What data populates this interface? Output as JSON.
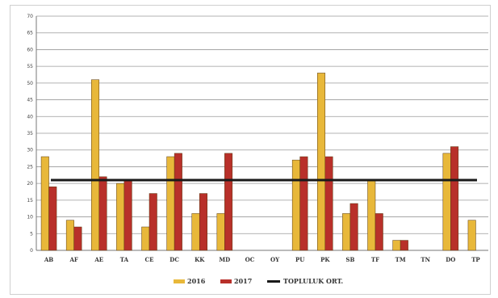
{
  "chart_data": {
    "type": "bar",
    "categories": [
      "AB",
      "AF",
      "AE",
      "TA",
      "CE",
      "DC",
      "KK",
      "MD",
      "OC",
      "OY",
      "PU",
      "PK",
      "SB",
      "TF",
      "TM",
      "TN",
      "DO",
      "TP"
    ],
    "series": [
      {
        "name": "2016",
        "color": "#e8b83a",
        "values": [
          28,
          9,
          51,
          20,
          7,
          28,
          11,
          11,
          0,
          0,
          27,
          53,
          11,
          21,
          3,
          0,
          29,
          9
        ]
      },
      {
        "name": "2017",
        "color": "#b8302a",
        "values": [
          19,
          7,
          22,
          21,
          17,
          29,
          17,
          29,
          0,
          0,
          28,
          28,
          14,
          11,
          3,
          0,
          31,
          0
        ]
      }
    ],
    "reference_line": {
      "name": "TOPLULUK ORT.",
      "value": 21,
      "color": "#1a1a1a"
    },
    "y_ticks": [
      0,
      5,
      10,
      15,
      20,
      25,
      30,
      35,
      40,
      45,
      50,
      55,
      60,
      65,
      70
    ],
    "ylim": [
      0,
      70
    ],
    "grid": true,
    "legend_position": "bottom",
    "title": "",
    "xlabel": "",
    "ylabel": ""
  }
}
